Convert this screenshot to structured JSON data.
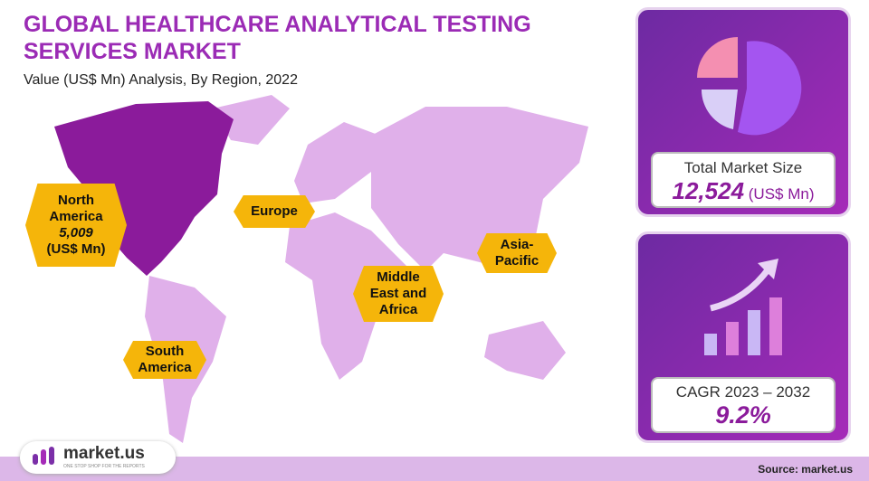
{
  "header": {
    "title": "GLOBAL HEALTHCARE ANALYTICAL TESTING SERVICES MARKET",
    "subtitle": "Value (US$ Mn) Analysis, By Region, 2022"
  },
  "regions": [
    {
      "label": "North America",
      "value": "5,009",
      "unit": "(US$ Mn)"
    },
    {
      "label": "Europe"
    },
    {
      "label": "Asia-Pacific"
    },
    {
      "label": "Middle East and Africa"
    },
    {
      "label": "South America"
    }
  ],
  "total": {
    "label": "Total Market Size",
    "value": "12,524",
    "unit": "(US$ Mn)"
  },
  "cagr": {
    "label": "CAGR 2023 – 2032",
    "value": "9.2%"
  },
  "footer": {
    "logo": "market.us",
    "tagline": "ONE STOP SHOP FOR THE REPORTS",
    "source": "Source: market.us"
  }
}
